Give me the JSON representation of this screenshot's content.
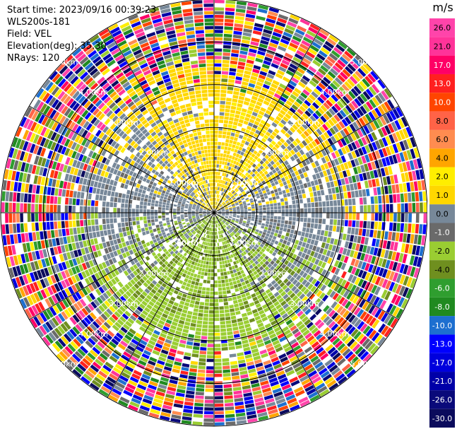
{
  "header": {
    "start_time": "Start time: 2023/09/16 00:39:23",
    "instrument": "WLS200s-181",
    "field": "Field: VEL",
    "elevation": "Elevation(deg): 35.30",
    "nrays": "NRays: 120"
  },
  "chart_data": {
    "type": "heatmap",
    "projection": "polar-ppi",
    "field": "VEL",
    "unit": "m/s",
    "nrays": 120,
    "elevation_deg": 35.3,
    "range_rings_km": [
      1.0,
      2.0,
      3.0,
      4.0,
      5.0
    ],
    "range_ring_labels": [
      "1.00km",
      "2.00km",
      "3.00km",
      "4.00km",
      "5.00km"
    ],
    "max_range_km": 5.0,
    "colorbar": {
      "unit": "m/s",
      "levels": [
        -30.0,
        -26.0,
        -21.0,
        -17.0,
        -13.0,
        -10.0,
        -8.0,
        -6.0,
        -4.0,
        -2.0,
        -1.0,
        0.0,
        1.0,
        2.0,
        4.0,
        6.0,
        8.0,
        10.0,
        13.0,
        17.0,
        21.0,
        26.0
      ],
      "tick_labels": [
        "-30.0",
        "-26.0",
        "-21.0",
        "-17.0",
        "-13.0",
        "-10.0",
        "-8.0",
        "-6.0",
        "-4.0",
        "-2.0",
        "-1.0",
        "0.0",
        "1.0",
        "2.0",
        "4.0",
        "6.0",
        "8.0",
        "10.0",
        "13.0",
        "17.0",
        "21.0",
        "26.0"
      ],
      "colors": [
        "#0b0b5c",
        "#0a0a7a",
        "#0000a8",
        "#0000dd",
        "#0000ff",
        "#1d6fd0",
        "#208a20",
        "#2f9e2f",
        "#6f8f1f",
        "#9acd32",
        "#6a6a6a",
        "#778899",
        "#ffd700",
        "#ffee00",
        "#ffa500",
        "#ff8c50",
        "#ff6347",
        "#ff4500",
        "#ff2020",
        "#ff0066",
        "#ff3399",
        "#ff44aa"
      ]
    }
  }
}
